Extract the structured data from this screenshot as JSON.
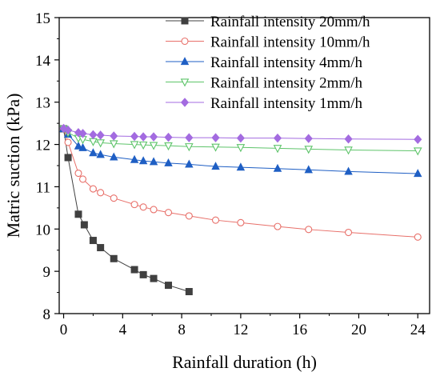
{
  "chart_data": {
    "type": "line",
    "xlabel": "Rainfall duration (h)",
    "ylabel": "Matric suction (kPa)",
    "xlim": [
      -0.3,
      24.8
    ],
    "ylim": [
      8,
      15
    ],
    "xticks": [
      0,
      4,
      8,
      12,
      16,
      20,
      24
    ],
    "yticks": [
      8,
      9,
      10,
      11,
      12,
      13,
      14,
      15
    ],
    "xtick_labels": [
      "0",
      "4",
      "8",
      "12",
      "16",
      "20",
      "24"
    ],
    "ytick_labels": [
      "8",
      "9",
      "10",
      "11",
      "12",
      "13",
      "14",
      "15"
    ],
    "legend_position": "top-right",
    "grid": false,
    "series": [
      {
        "name": "Rainfall intensity 20mm/h",
        "color": "#404040",
        "marker": "square",
        "x": [
          0,
          0.3,
          1.0,
          1.4,
          2.0,
          2.5,
          3.4,
          4.8,
          5.4,
          6.1,
          7.1,
          8.5
        ],
        "y": [
          12.37,
          11.69,
          10.35,
          10.1,
          9.73,
          9.56,
          9.3,
          9.04,
          8.92,
          8.83,
          8.67,
          8.52
        ]
      },
      {
        "name": "Rainfall intensity 10mm/h",
        "color": "#e8706a",
        "marker": "circle",
        "x": [
          0,
          0.3,
          1.0,
          1.3,
          2.0,
          2.5,
          3.4,
          4.8,
          5.4,
          6.1,
          7.1,
          8.5,
          10.3,
          12.0,
          14.5,
          16.6,
          19.3,
          24.0
        ],
        "y": [
          12.37,
          12.05,
          11.32,
          11.18,
          10.95,
          10.86,
          10.73,
          10.58,
          10.52,
          10.46,
          10.39,
          10.31,
          10.21,
          10.15,
          10.06,
          9.99,
          9.92,
          9.81
        ]
      },
      {
        "name": "Rainfall intensity 4mm/h",
        "color": "#1f5fc4",
        "marker": "triangle-up",
        "x": [
          0,
          0.3,
          1.0,
          1.3,
          2.0,
          2.5,
          3.4,
          4.8,
          5.4,
          6.1,
          7.1,
          8.5,
          10.3,
          12.0,
          14.5,
          16.6,
          19.3,
          24.0
        ],
        "y": [
          12.37,
          12.24,
          11.96,
          11.92,
          11.8,
          11.76,
          11.7,
          11.64,
          11.61,
          11.59,
          11.56,
          11.53,
          11.48,
          11.46,
          11.43,
          11.4,
          11.36,
          11.31
        ]
      },
      {
        "name": "Rainfall intensity 2mm/h",
        "color": "#5ec46a",
        "marker": "triangle-down",
        "x": [
          0,
          0.3,
          1.0,
          1.3,
          2.0,
          2.5,
          3.4,
          4.8,
          5.4,
          6.1,
          7.1,
          8.5,
          10.3,
          12.0,
          14.5,
          16.6,
          19.3,
          24.0
        ],
        "y": [
          12.37,
          12.28,
          12.15,
          12.12,
          12.07,
          12.04,
          12.02,
          12.0,
          11.99,
          11.98,
          11.97,
          11.95,
          11.94,
          11.93,
          11.91,
          11.89,
          11.87,
          11.85
        ]
      },
      {
        "name": "Rainfall intensity 1mm/h",
        "color": "#a36be0",
        "marker": "diamond",
        "x": [
          0,
          0.3,
          1.0,
          1.3,
          2.0,
          2.5,
          3.4,
          4.8,
          5.4,
          6.1,
          7.1,
          8.5,
          10.3,
          12.0,
          14.5,
          16.6,
          19.3,
          24.0
        ],
        "y": [
          12.38,
          12.34,
          12.28,
          12.26,
          12.23,
          12.22,
          12.2,
          12.19,
          12.18,
          12.18,
          12.17,
          12.16,
          12.16,
          12.15,
          12.15,
          12.14,
          12.13,
          12.12
        ]
      }
    ]
  }
}
